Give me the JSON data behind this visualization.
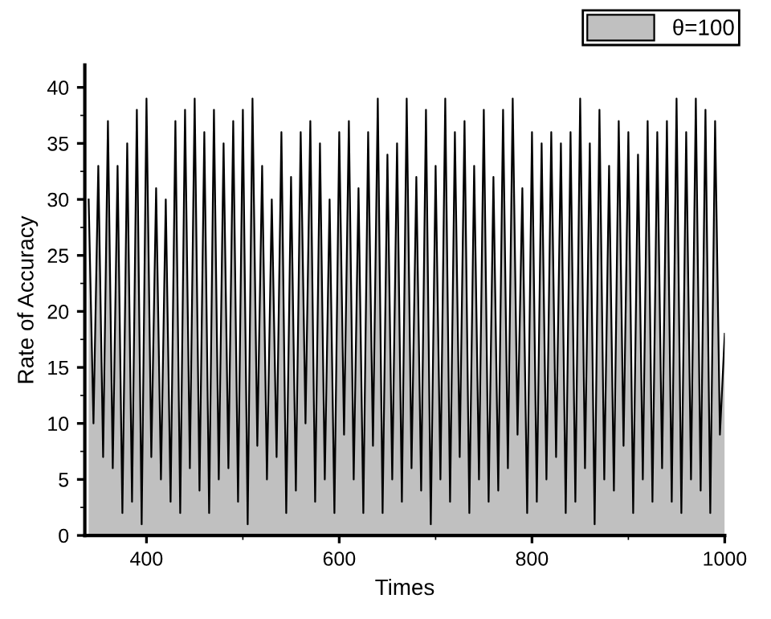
{
  "chart_data": {
    "type": "area",
    "xlabel": "Times",
    "ylabel": "Rate of Accuracy",
    "xlim": [
      336,
      1000
    ],
    "ylim": [
      0,
      42
    ],
    "xticks": [
      400,
      600,
      800,
      1000
    ],
    "yticks": [
      0,
      5,
      10,
      15,
      20,
      25,
      30,
      35,
      40
    ],
    "grid": false,
    "legend": "top right",
    "x": [
      340,
      345,
      350,
      355,
      360,
      365,
      370,
      375,
      380,
      385,
      390,
      395,
      400,
      405,
      410,
      415,
      420,
      425,
      430,
      435,
      440,
      445,
      450,
      455,
      460,
      465,
      470,
      475,
      480,
      485,
      490,
      495,
      500,
      505,
      510,
      515,
      520,
      525,
      530,
      535,
      540,
      545,
      550,
      555,
      560,
      565,
      570,
      575,
      580,
      585,
      590,
      595,
      600,
      605,
      610,
      615,
      620,
      625,
      630,
      635,
      640,
      645,
      650,
      655,
      660,
      665,
      670,
      675,
      680,
      685,
      690,
      695,
      700,
      705,
      710,
      715,
      720,
      725,
      730,
      735,
      740,
      745,
      750,
      755,
      760,
      765,
      770,
      775,
      780,
      785,
      790,
      795,
      800,
      805,
      810,
      815,
      820,
      825,
      830,
      835,
      840,
      845,
      850,
      855,
      860,
      865,
      870,
      875,
      880,
      885,
      890,
      895,
      900,
      905,
      910,
      915,
      920,
      925,
      930,
      935,
      940,
      945,
      950,
      955,
      960,
      965,
      970,
      975,
      980,
      985,
      990,
      995,
      1000
    ],
    "series": [
      {
        "name": "θ=100",
        "color": "#c0c0c0",
        "values": [
          30,
          10,
          33,
          7,
          37,
          6,
          33,
          2,
          35,
          3,
          38,
          1,
          39,
          7,
          31,
          5,
          30,
          3,
          37,
          2,
          38,
          6,
          39,
          4,
          36,
          2,
          38,
          5,
          35,
          6,
          37,
          3,
          38,
          1,
          39,
          8,
          33,
          5,
          30,
          7,
          36,
          2,
          32,
          4,
          36,
          10,
          37,
          3,
          35,
          5,
          30,
          2,
          36,
          9,
          37,
          5,
          31,
          2,
          36,
          8,
          39,
          2,
          34,
          5,
          35,
          3,
          39,
          6,
          32,
          4,
          38,
          1,
          33,
          5,
          39,
          3,
          36,
          7,
          37,
          2,
          33,
          5,
          38,
          3,
          32,
          4,
          38,
          6,
          39,
          9,
          31,
          2,
          36,
          3,
          35,
          5,
          36,
          7,
          35,
          2,
          36,
          3,
          39,
          6,
          35,
          1,
          38,
          5,
          33,
          4,
          37,
          8,
          36,
          2,
          34,
          5,
          37,
          3,
          36,
          6,
          37,
          3,
          39,
          2,
          36,
          5,
          39,
          4,
          38,
          2,
          37,
          9,
          18
        ]
      }
    ]
  }
}
